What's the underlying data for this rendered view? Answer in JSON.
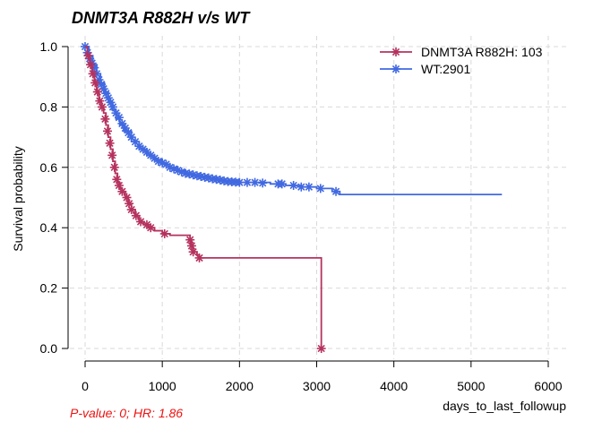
{
  "chart_data": {
    "type": "line",
    "subtype": "kaplan-meier",
    "title": "DNMT3A R882H v/s WT",
    "xlabel": "days_to_last_followup",
    "ylabel": "Survival probability",
    "xlim": [
      0,
      6000
    ],
    "ylim": [
      0,
      1
    ],
    "x_ticks": [
      0,
      1000,
      2000,
      3000,
      4000,
      5000,
      6000
    ],
    "y_ticks": [
      "0.0",
      "0.2",
      "0.4",
      "0.6",
      "0.8",
      "1.0"
    ],
    "grid": true,
    "legend_position": "top-right",
    "note": "P-value: 0; HR: 1.86",
    "note_color": "#ee1111",
    "series": [
      {
        "name": "DNMT3A R882H: 103",
        "color": "#b5325e",
        "x": [
          0,
          30,
          60,
          90,
          120,
          150,
          180,
          210,
          240,
          270,
          300,
          330,
          360,
          390,
          420,
          450,
          480,
          520,
          560,
          600,
          650,
          700,
          760,
          820,
          900,
          1000,
          1100,
          1200,
          1300,
          1360,
          1380,
          1400,
          1450,
          1480,
          3060,
          3060
        ],
        "y": [
          1.0,
          0.97,
          0.94,
          0.91,
          0.88,
          0.85,
          0.82,
          0.8,
          0.78,
          0.74,
          0.7,
          0.66,
          0.62,
          0.58,
          0.55,
          0.53,
          0.52,
          0.5,
          0.48,
          0.46,
          0.44,
          0.42,
          0.41,
          0.4,
          0.39,
          0.38,
          0.375,
          0.375,
          0.375,
          0.36,
          0.34,
          0.32,
          0.31,
          0.3,
          0.3,
          0.0
        ],
        "censor_x": [
          40,
          70,
          100,
          130,
          160,
          190,
          220,
          260,
          290,
          320,
          350,
          380,
          410,
          440,
          480,
          540,
          570,
          600,
          660,
          720,
          800,
          850,
          1030,
          1360,
          1380,
          1400,
          1480,
          3060
        ],
        "censor_y": [
          0.97,
          0.94,
          0.91,
          0.88,
          0.85,
          0.82,
          0.8,
          0.76,
          0.72,
          0.68,
          0.64,
          0.6,
          0.56,
          0.54,
          0.52,
          0.5,
          0.48,
          0.46,
          0.44,
          0.42,
          0.41,
          0.4,
          0.38,
          0.36,
          0.34,
          0.32,
          0.3,
          0.0
        ]
      },
      {
        "name": "WT:2901",
        "color": "#4169e1",
        "x": [
          0,
          50,
          100,
          150,
          200,
          250,
          300,
          350,
          400,
          450,
          500,
          600,
          700,
          800,
          900,
          1000,
          1100,
          1200,
          1300,
          1400,
          1500,
          1600,
          1700,
          1800,
          2000,
          2200,
          2400,
          2600,
          2800,
          3000,
          3200,
          3300,
          5400
        ],
        "y": [
          1.0,
          0.97,
          0.94,
          0.91,
          0.88,
          0.85,
          0.82,
          0.79,
          0.76,
          0.74,
          0.72,
          0.685,
          0.66,
          0.64,
          0.625,
          0.61,
          0.6,
          0.59,
          0.58,
          0.575,
          0.57,
          0.565,
          0.56,
          0.555,
          0.55,
          0.55,
          0.545,
          0.54,
          0.535,
          0.53,
          0.52,
          0.51,
          0.51
        ],
        "censor_x": [
          0,
          30,
          60,
          90,
          120,
          150,
          180,
          210,
          240,
          270,
          300,
          330,
          360,
          400,
          440,
          480,
          520,
          560,
          600,
          650,
          700,
          750,
          800,
          850,
          900,
          950,
          1000,
          1050,
          1100,
          1150,
          1200,
          1250,
          1300,
          1350,
          1400,
          1450,
          1500,
          1550,
          1600,
          1650,
          1700,
          1750,
          1800,
          1850,
          1900,
          1950,
          2000,
          2100,
          2200,
          2300,
          2500,
          2550,
          2700,
          2800,
          2900,
          3050,
          3250
        ],
        "censor_y": [
          1.0,
          0.98,
          0.96,
          0.945,
          0.93,
          0.91,
          0.89,
          0.875,
          0.86,
          0.845,
          0.83,
          0.815,
          0.8,
          0.78,
          0.765,
          0.745,
          0.73,
          0.715,
          0.7,
          0.685,
          0.67,
          0.66,
          0.65,
          0.64,
          0.63,
          0.62,
          0.615,
          0.61,
          0.6,
          0.595,
          0.59,
          0.585,
          0.58,
          0.578,
          0.575,
          0.572,
          0.57,
          0.567,
          0.565,
          0.562,
          0.56,
          0.558,
          0.555,
          0.553,
          0.552,
          0.551,
          0.55,
          0.55,
          0.55,
          0.548,
          0.545,
          0.545,
          0.54,
          0.535,
          0.535,
          0.53,
          0.52
        ]
      }
    ]
  }
}
